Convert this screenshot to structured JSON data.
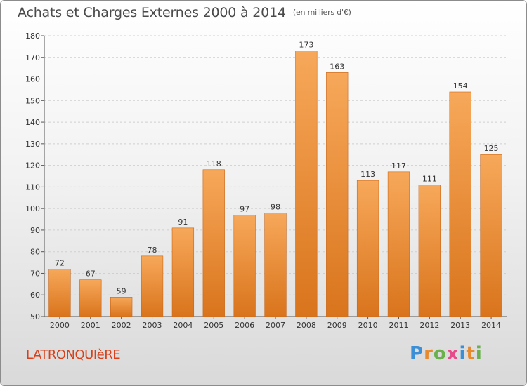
{
  "header": {
    "title": "Achats et Charges Externes 2000 à 2014",
    "subtitle": "(en milliers d'€)"
  },
  "footer": {
    "commune": "LATRONQUIèRE",
    "logo": "Proxiti"
  },
  "colors": {
    "bar_top": "#f7a85a",
    "bar_bottom": "#d9741c",
    "bar_edge": "#c8671a",
    "logo": [
      "#3a8fd6",
      "#e8892b",
      "#6ab04c",
      "#e84b8a",
      "#3a8fd6",
      "#e8892b",
      "#6ab04c"
    ]
  },
  "chart_data": {
    "type": "bar",
    "categories": [
      "2000",
      "2001",
      "2002",
      "2003",
      "2004",
      "2005",
      "2006",
      "2007",
      "2008",
      "2009",
      "2010",
      "2011",
      "2012",
      "2013",
      "2014"
    ],
    "values": [
      72,
      67,
      59,
      78,
      91,
      118,
      97,
      98,
      173,
      163,
      113,
      117,
      111,
      154,
      125
    ],
    "ylim": [
      50,
      180
    ],
    "yticks": [
      50,
      60,
      70,
      80,
      90,
      100,
      110,
      120,
      130,
      140,
      150,
      160,
      170,
      180
    ],
    "grid": true
  }
}
